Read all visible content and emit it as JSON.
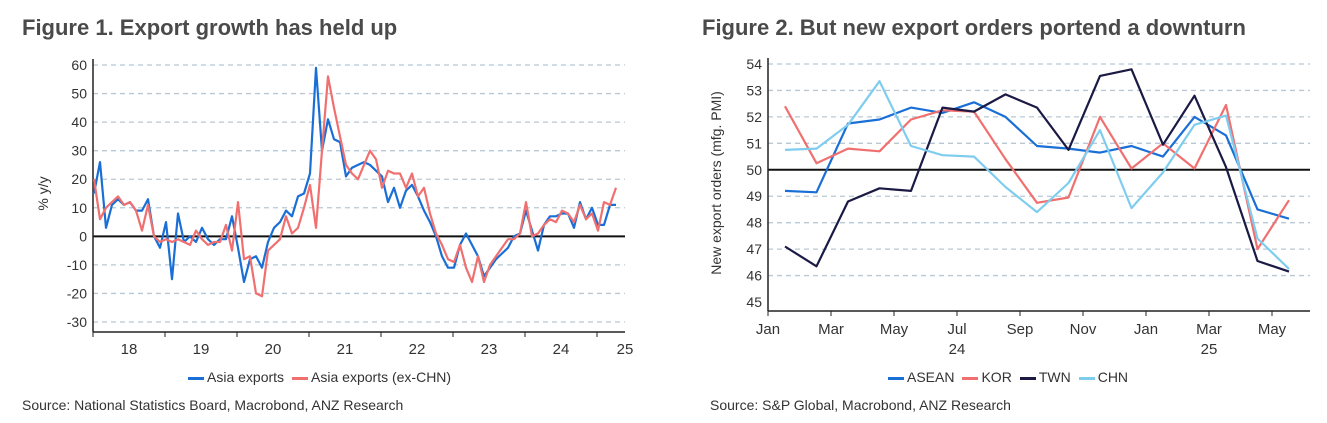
{
  "chart_data": [
    {
      "type": "line",
      "title": "Figure 1. Export growth has held up",
      "ylabel": "% y/y",
      "xlabel": "",
      "ylim": [
        -30,
        60
      ],
      "yticks": [
        60,
        50,
        40,
        30,
        20,
        10,
        0,
        -10,
        -20,
        -30
      ],
      "xlim": [
        2018,
        2025.5
      ],
      "xtick_labels": [
        "18",
        "19",
        "20",
        "21",
        "22",
        "23",
        "24",
        "25"
      ],
      "x_start": 2018,
      "x_step_months": 1,
      "grid": true,
      "legend": "bottom",
      "series": [
        {
          "name": "Asia exports",
          "color": "#1a6fd6",
          "values": [
            15,
            26,
            3,
            11,
            13,
            11,
            12,
            9,
            9,
            13,
            0,
            -4,
            5,
            -15,
            8,
            -2,
            0,
            -2,
            3,
            -1,
            -3,
            -1,
            -1,
            7,
            -4,
            -16,
            -8,
            -7,
            -11,
            -2,
            3,
            5,
            9,
            7,
            14,
            15,
            22,
            59,
            30,
            41,
            34,
            33,
            21,
            24,
            25,
            26,
            25,
            23,
            21,
            12,
            17,
            10,
            16,
            18,
            14,
            9,
            5,
            0,
            -7,
            -11,
            -11,
            -3,
            1,
            -3,
            -7,
            -14,
            -11,
            -8,
            -6,
            -4,
            0,
            1,
            9,
            2,
            -5,
            4,
            7,
            7,
            8,
            8,
            3,
            12,
            6,
            10,
            4,
            4,
            11,
            11
          ]
        },
        {
          "name": "Asia exports (ex-CHN)",
          "color": "#f07070",
          "values": [
            20,
            6,
            10,
            12,
            14,
            11,
            12,
            9,
            2,
            11,
            0,
            -2,
            -1,
            -2,
            -1,
            -2,
            -3,
            2,
            -1,
            -3,
            -2,
            -2,
            4,
            -5,
            12,
            -8,
            -7,
            -20,
            -21,
            -5,
            -3,
            -1,
            7,
            1,
            3,
            10,
            18,
            3,
            30,
            56,
            45,
            35,
            25,
            22,
            20,
            25,
            30,
            27,
            17,
            23,
            22,
            22,
            17,
            22,
            14,
            17,
            8,
            1,
            -3,
            -8,
            -9,
            -3,
            -11,
            -16,
            -7,
            -16,
            -10,
            -7,
            -4,
            -1,
            -1,
            1,
            12,
            0,
            1,
            4,
            6,
            5,
            9,
            8,
            5,
            11,
            6,
            8,
            2,
            12,
            11,
            17
          ]
        }
      ],
      "source": "Source: National Statistics Board, Macrobond, ANZ Research"
    },
    {
      "type": "line",
      "title": "Figure 2. But new export orders portend a downturn",
      "ylabel": "New export orders (mfg. PMI)",
      "xlabel": "",
      "ylim": [
        45,
        54
      ],
      "yticks": [
        54,
        53,
        52,
        51,
        50,
        49,
        48,
        47,
        46,
        45
      ],
      "xtick_labels": [
        "Jan",
        "Mar",
        "May",
        "Jul",
        "Sep",
        "Nov",
        "Jan",
        "Mar",
        "May"
      ],
      "year_labels": [
        "24",
        "25"
      ],
      "x_start": "2024-01",
      "x_step_months": 1,
      "grid": true,
      "legend": "bottom",
      "series": [
        {
          "name": "ASEAN",
          "color": "#1a6fd6",
          "values": [
            49.2,
            49.15,
            51.75,
            51.9,
            52.35,
            52.15,
            52.55,
            52.0,
            50.9,
            50.8,
            50.65,
            50.9,
            50.5,
            52.0,
            51.3,
            48.5,
            48.15
          ]
        },
        {
          "name": "KOR",
          "color": "#f07070",
          "values": [
            52.4,
            50.25,
            50.8,
            50.7,
            51.9,
            52.25,
            52.2,
            50.4,
            48.75,
            48.95,
            52.0,
            50.05,
            51.0,
            50.05,
            52.45,
            47.0,
            48.85
          ]
        },
        {
          "name": "TWN",
          "color": "#1b1a45",
          "values": [
            47.1,
            46.35,
            48.8,
            49.3,
            49.2,
            52.35,
            52.2,
            52.85,
            52.35,
            50.75,
            53.55,
            53.8,
            50.95,
            52.8,
            50.1,
            46.55,
            46.15
          ]
        },
        {
          "name": "CHN",
          "color": "#7fcdee",
          "values": [
            50.75,
            50.8,
            51.7,
            53.35,
            50.9,
            50.55,
            50.5,
            49.35,
            48.4,
            49.5,
            51.5,
            48.55,
            49.9,
            51.7,
            52.05,
            47.4,
            46.25
          ]
        }
      ],
      "source": "Source: S&P Global, Macrobond, ANZ Research"
    }
  ]
}
